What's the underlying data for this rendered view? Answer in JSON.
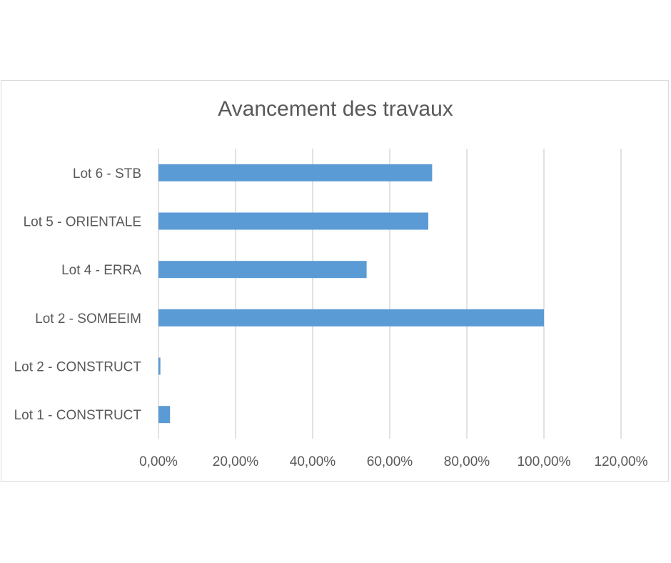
{
  "chart_data": {
    "type": "bar",
    "orientation": "horizontal",
    "title": "Avancement des travaux",
    "categories": [
      "Lot 6 - STB",
      "Lot 5 - ORIENTALE",
      "Lot 4 - ERRA",
      "Lot 2 - SOMEEIM",
      "Lot 2 - CONSTRUCT",
      "Lot 1 - CONSTRUCT"
    ],
    "values": [
      71.0,
      70.0,
      54.0,
      100.0,
      0.5,
      3.0
    ],
    "value_unit": "percent",
    "xlim": [
      0,
      120
    ],
    "x_ticks": [
      0,
      20,
      40,
      60,
      80,
      100,
      120
    ],
    "x_tick_labels": [
      "0,00%",
      "20,00%",
      "40,00%",
      "60,00%",
      "80,00%",
      "100,00%",
      "120,00%"
    ],
    "xlabel": "",
    "ylabel": "",
    "grid": "vertical",
    "legend": "none",
    "bar_color": "#5b9bd5",
    "grid_color": "#d9d9d9",
    "text_color": "#595959"
  }
}
